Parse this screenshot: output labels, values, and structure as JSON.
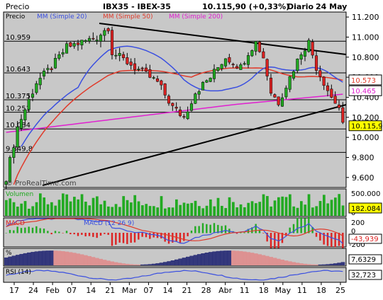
{
  "header": {
    "label_left": "Precio",
    "title": "IBX35 - IBEX-35",
    "price": "10.115,90 (+0,33%)",
    "period": "Diario",
    "date": "24 May"
  },
  "legend": [
    {
      "label": "MM (Simple 20)",
      "color": "#3a4fe0"
    },
    {
      "label": "MM (Simple 50)",
      "color": "#e03a2a"
    },
    {
      "label": "MM (Simple 200)",
      "color": "#e020d0"
    }
  ],
  "watermark": "© ProRealTime.com",
  "colors": {
    "panel_bg": "#c8c8c8",
    "up_candle": "#22aa22",
    "down_candle": "#dd2222",
    "volume_bar": "#22aa22",
    "last_price_box": "#ffff00",
    "macd_line": "#3a4fe0",
    "signal_line": "#e03a2a"
  },
  "chart_data": {
    "type": "candlestick",
    "x_tick_labels": [
      "17",
      "24",
      "Feb",
      "07",
      "14",
      "21",
      "Mar",
      "07",
      "14",
      "21",
      "28",
      "Abr",
      "11",
      "18",
      "May",
      "11",
      "18",
      "25"
    ],
    "price_axis": {
      "ticks": [
        "11.200",
        "11.000",
        "10.800",
        "10.600",
        "10.400",
        "10.200",
        "10.000",
        "9.800",
        "9.600"
      ],
      "range": [
        9500,
        11250
      ]
    },
    "horizontal_levels": [
      {
        "value": "10.959",
        "color": "#000000"
      },
      {
        "value": "10.643",
        "color": "#000000"
      },
      {
        "value": "10.375",
        "color": "#000000"
      },
      {
        "value": "10.251",
        "color": "#000000"
      },
      {
        "value": "10.084",
        "color": "#000000"
      },
      {
        "value": "9.849,8",
        "color": "#000000"
      }
    ],
    "right_markers": [
      {
        "value": "10.573",
        "bg": "#ffffff",
        "fg": "#e03a2a"
      },
      {
        "value": "10.465",
        "bg": "#ffffff",
        "fg": "#e020d0"
      },
      {
        "value": "10.115,9",
        "bg": "#ffff00",
        "fg": "#000000"
      }
    ],
    "volume": {
      "label": "Volumen",
      "ticks": [
        "500.000",
        "0"
      ],
      "last_value": "182.084"
    },
    "macd": {
      "label": "MACD",
      "title": "MACD (12 26 9)",
      "ticks": [
        "200",
        "0",
        "-200"
      ],
      "last_value": "-43,939"
    },
    "stochastic": {
      "label": "%",
      "last_value": "7,6329"
    },
    "rsi": {
      "label": "RSI (14)",
      "last_value": "32,723"
    }
  }
}
